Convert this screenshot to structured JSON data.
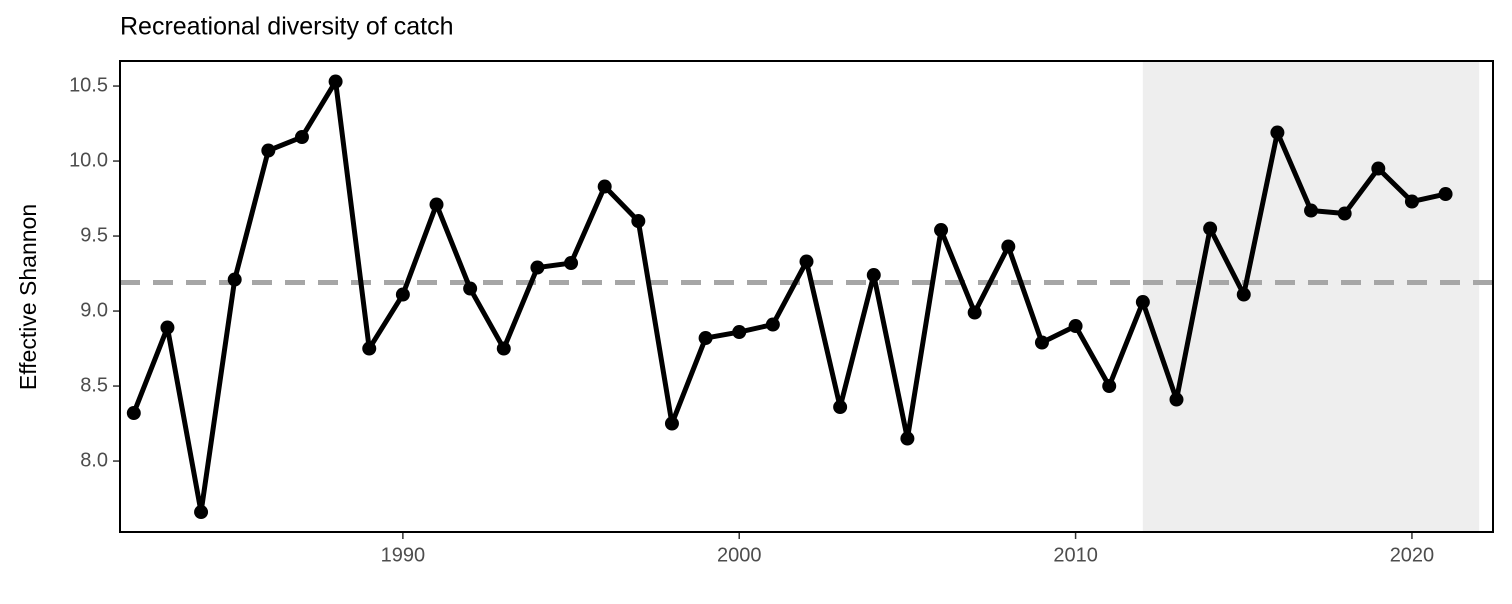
{
  "chart_data": {
    "type": "line",
    "title": "Recreational diversity of catch",
    "y_label": "Effective Shannon",
    "x": [
      1982,
      1983,
      1984,
      1985,
      1986,
      1987,
      1988,
      1989,
      1990,
      1991,
      1992,
      1993,
      1994,
      1995,
      1996,
      1997,
      1998,
      1999,
      2000,
      2001,
      2002,
      2003,
      2004,
      2005,
      2006,
      2007,
      2008,
      2009,
      2010,
      2011,
      2012,
      2013,
      2014,
      2015,
      2016,
      2017,
      2018,
      2019,
      2020,
      2021
    ],
    "values": [
      8.32,
      8.89,
      7.66,
      9.21,
      10.07,
      10.16,
      10.53,
      8.75,
      9.11,
      9.71,
      9.15,
      8.75,
      9.29,
      9.32,
      9.83,
      9.6,
      8.25,
      8.82,
      8.86,
      8.91,
      9.33,
      8.36,
      9.24,
      8.15,
      9.54,
      8.99,
      9.43,
      8.79,
      8.9,
      8.5,
      9.06,
      8.41,
      9.55,
      9.11,
      10.19,
      9.67,
      9.65,
      9.95,
      9.73,
      9.78
    ],
    "color": "#000000",
    "mean_line": 9.19,
    "mean_line_color": "#a6a6a6",
    "shaded_x": [
      2012,
      2022
    ],
    "shaded_color": "#eeeeee",
    "xlim": [
      1981.59,
      2022.41
    ],
    "ylim": [
      7.527,
      10.667
    ],
    "xticks": [
      1990,
      2000,
      2010,
      2020
    ],
    "yticks": [
      {
        "value": 8,
        "label": "8.0"
      },
      8.5,
      {
        "value": 9,
        "label": "9.0"
      },
      9.5,
      {
        "value": 10,
        "label": "10.0"
      },
      10.5
    ]
  }
}
